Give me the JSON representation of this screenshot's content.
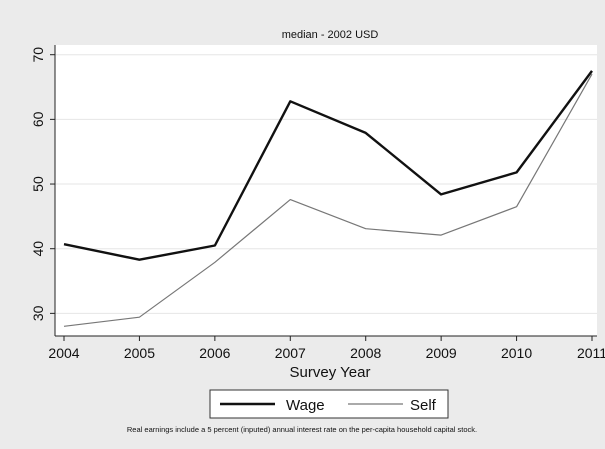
{
  "chart_data": {
    "type": "line",
    "title": "median - 2002 USD",
    "xlabel": "Survey Year",
    "ylabel": "",
    "x": [
      2004,
      2005,
      2006,
      2007,
      2008,
      2009,
      2010,
      2011
    ],
    "x_tick_labels": [
      "2004",
      "2005",
      "2006",
      "2007",
      "2008",
      "2009",
      "2010",
      "2011"
    ],
    "y_ticks": [
      30,
      40,
      50,
      60,
      70
    ],
    "y_tick_labels": [
      "30",
      "40",
      "50",
      "60",
      "70"
    ],
    "ylim": [
      26.5,
      71.5
    ],
    "grid": true,
    "legend_position": "bottom",
    "series": [
      {
        "name": "Wage",
        "values": [
          40.7,
          38.3,
          40.5,
          62.8,
          57.9,
          48.4,
          51.8,
          67.5
        ],
        "color": "#111111"
      },
      {
        "name": "Self",
        "values": [
          28.0,
          29.4,
          37.9,
          47.6,
          43.1,
          42.1,
          46.5,
          67.0
        ],
        "color": "#777777"
      }
    ],
    "note": "Real earnings include a 5 percent (inputed) annual interest rate on the per-capita household capital stock."
  }
}
